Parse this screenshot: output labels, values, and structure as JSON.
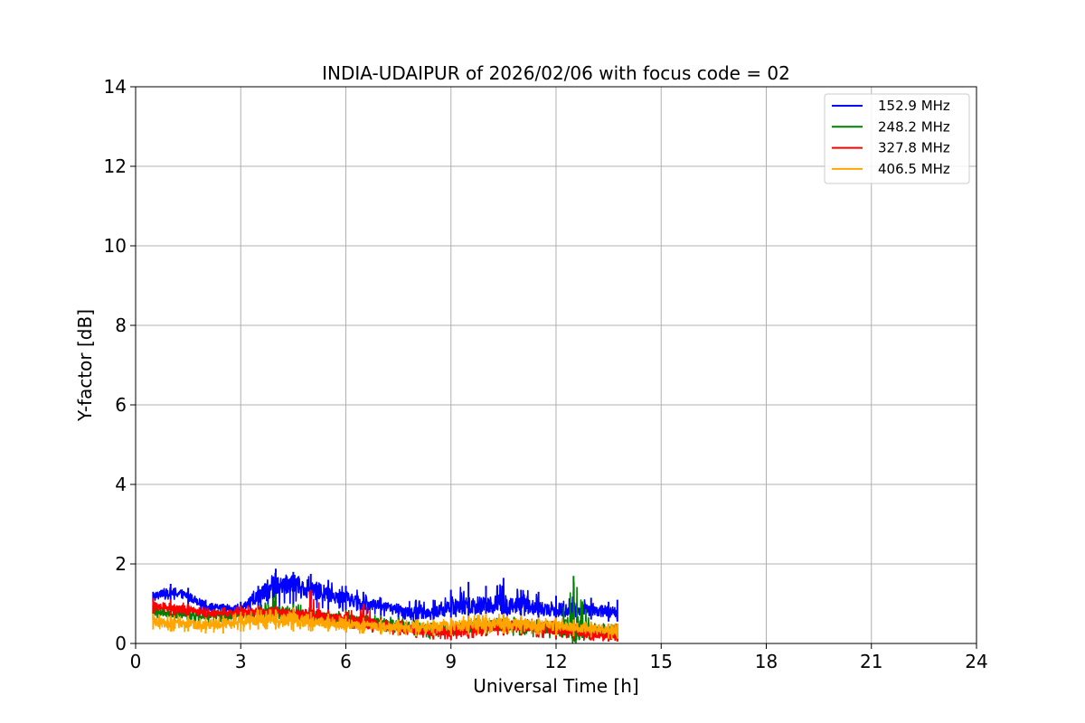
{
  "chart_data": {
    "type": "line",
    "title": "INDIA-UDAIPUR of 2026/02/06 with focus code = 02",
    "xlabel": "Universal Time [h]",
    "ylabel": "Y-factor [dB]",
    "xlim": [
      0,
      24
    ],
    "ylim": [
      0,
      14
    ],
    "xticks": [
      0,
      3,
      6,
      9,
      12,
      15,
      18,
      21,
      24
    ],
    "yticks": [
      0,
      2,
      4,
      6,
      8,
      10,
      12,
      14
    ],
    "grid": true,
    "legend_position": "top-right",
    "x_start": 0.5,
    "x_end": 13.75,
    "series": [
      {
        "name": "152.9 MHz",
        "color": "#0000ff",
        "x": [
          0.5,
          1,
          1.5,
          2,
          2.5,
          3,
          3.5,
          4,
          4.5,
          5,
          5.5,
          6,
          6.5,
          7,
          7.5,
          8,
          8.5,
          9,
          9.5,
          10,
          10.5,
          11,
          11.5,
          12,
          12.5,
          13,
          13.5,
          13.75
        ],
        "y": [
          1.2,
          1.3,
          1.2,
          0.95,
          0.9,
          0.85,
          1.2,
          1.45,
          1.5,
          1.35,
          1.25,
          1.15,
          1.0,
          0.95,
          0.85,
          0.75,
          0.8,
          0.9,
          0.95,
          1.0,
          0.95,
          1.0,
          0.9,
          0.85,
          0.85,
          0.85,
          0.8,
          0.75
        ],
        "max": [
          1.3,
          1.5,
          1.4,
          1.1,
          1.0,
          1.05,
          1.45,
          1.88,
          1.8,
          1.75,
          1.6,
          1.45,
          1.3,
          1.15,
          1.0,
          1.1,
          1.1,
          1.35,
          1.55,
          1.45,
          1.65,
          1.35,
          1.3,
          1.2,
          1.3,
          1.15,
          1.05,
          1.1
        ],
        "min": [
          1.05,
          1.1,
          1.0,
          0.8,
          0.75,
          0.7,
          0.85,
          0.9,
          0.95,
          0.9,
          0.85,
          0.8,
          0.75,
          0.7,
          0.65,
          0.55,
          0.6,
          0.65,
          0.65,
          0.7,
          0.65,
          0.7,
          0.65,
          0.6,
          0.6,
          0.6,
          0.55,
          0.55
        ]
      },
      {
        "name": "248.2 MHz",
        "color": "#008000",
        "x": [
          0.5,
          1,
          1.5,
          2,
          2.5,
          3,
          3.5,
          4,
          4.5,
          5,
          5.5,
          6,
          6.5,
          7,
          7.5,
          8,
          8.5,
          9,
          9.5,
          10,
          10.5,
          11,
          11.5,
          12,
          12.5,
          13,
          13.5,
          13.75
        ],
        "y": [
          0.8,
          0.75,
          0.7,
          0.7,
          0.7,
          0.7,
          0.72,
          0.75,
          0.75,
          0.7,
          0.65,
          0.6,
          0.55,
          0.5,
          0.45,
          0.4,
          0.35,
          0.35,
          0.4,
          0.45,
          0.45,
          0.45,
          0.4,
          0.35,
          0.35,
          0.3,
          0.3,
          0.3
        ],
        "max": [
          0.95,
          0.9,
          0.85,
          0.85,
          0.85,
          0.85,
          0.9,
          1.25,
          1.0,
          0.95,
          0.85,
          0.85,
          0.75,
          0.7,
          0.65,
          0.6,
          0.55,
          0.55,
          0.6,
          0.65,
          0.7,
          0.65,
          0.6,
          0.55,
          1.7,
          0.5,
          0.5,
          0.5
        ],
        "min": [
          0.6,
          0.55,
          0.5,
          0.5,
          0.5,
          0.5,
          0.5,
          0.5,
          0.5,
          0.45,
          0.4,
          0.35,
          0.3,
          0.25,
          0.2,
          0.15,
          0.1,
          0.1,
          0.15,
          0.2,
          0.2,
          0.2,
          0.15,
          0.1,
          0.1,
          0.1,
          0.05,
          0.05
        ]
      },
      {
        "name": "327.8 MHz",
        "color": "#ff0000",
        "x": [
          0.5,
          1,
          1.5,
          2,
          2.5,
          3,
          3.5,
          4,
          4.5,
          5,
          5.5,
          6,
          6.5,
          7,
          7.5,
          8,
          8.5,
          9,
          9.5,
          10,
          10.5,
          11,
          11.5,
          12,
          12.5,
          13,
          13.5,
          13.75
        ],
        "y": [
          0.95,
          0.9,
          0.85,
          0.75,
          0.75,
          0.78,
          0.8,
          0.8,
          0.75,
          0.7,
          0.65,
          0.6,
          0.55,
          0.45,
          0.4,
          0.35,
          0.3,
          0.3,
          0.35,
          0.4,
          0.45,
          0.45,
          0.4,
          0.35,
          0.3,
          0.25,
          0.2,
          0.2
        ],
        "max": [
          1.15,
          1.1,
          1.0,
          0.9,
          0.9,
          0.95,
          0.95,
          0.95,
          0.9,
          1.35,
          0.85,
          0.8,
          1.0,
          0.65,
          0.6,
          0.55,
          0.5,
          0.5,
          0.55,
          0.6,
          0.65,
          0.65,
          0.6,
          0.55,
          0.5,
          0.45,
          0.4,
          0.4
        ],
        "min": [
          0.75,
          0.7,
          0.65,
          0.6,
          0.6,
          0.6,
          0.62,
          0.6,
          0.55,
          0.5,
          0.45,
          0.4,
          0.35,
          0.25,
          0.2,
          0.15,
          0.1,
          0.08,
          0.12,
          0.18,
          0.2,
          0.2,
          0.15,
          0.12,
          0.1,
          0.08,
          0.05,
          0.05
        ]
      },
      {
        "name": "406.5 MHz",
        "color": "#ffa500",
        "x": [
          0.5,
          1,
          1.5,
          2,
          2.5,
          3,
          3.5,
          4,
          4.5,
          5,
          5.5,
          6,
          6.5,
          7,
          7.5,
          8,
          8.5,
          9,
          9.5,
          10,
          10.5,
          11,
          11.5,
          12,
          12.5,
          13,
          13.5,
          13.75
        ],
        "y": [
          0.55,
          0.5,
          0.5,
          0.45,
          0.5,
          0.55,
          0.6,
          0.6,
          0.6,
          0.55,
          0.55,
          0.5,
          0.45,
          0.42,
          0.4,
          0.4,
          0.42,
          0.45,
          0.45,
          0.5,
          0.5,
          0.5,
          0.45,
          0.45,
          0.4,
          0.38,
          0.35,
          0.35
        ],
        "max": [
          0.75,
          0.7,
          0.7,
          0.65,
          0.7,
          0.8,
          0.85,
          0.85,
          0.9,
          0.8,
          0.75,
          0.7,
          0.65,
          0.6,
          0.6,
          0.6,
          0.6,
          0.65,
          0.7,
          0.75,
          0.75,
          0.7,
          0.65,
          0.65,
          0.6,
          0.55,
          0.5,
          0.5
        ],
        "min": [
          0.35,
          0.3,
          0.3,
          0.25,
          0.25,
          0.3,
          0.35,
          0.35,
          0.3,
          0.3,
          0.3,
          0.28,
          0.25,
          0.22,
          0.2,
          0.18,
          0.2,
          0.2,
          0.22,
          0.25,
          0.25,
          0.25,
          0.22,
          0.2,
          0.18,
          0.15,
          0.12,
          0.12
        ]
      }
    ]
  }
}
